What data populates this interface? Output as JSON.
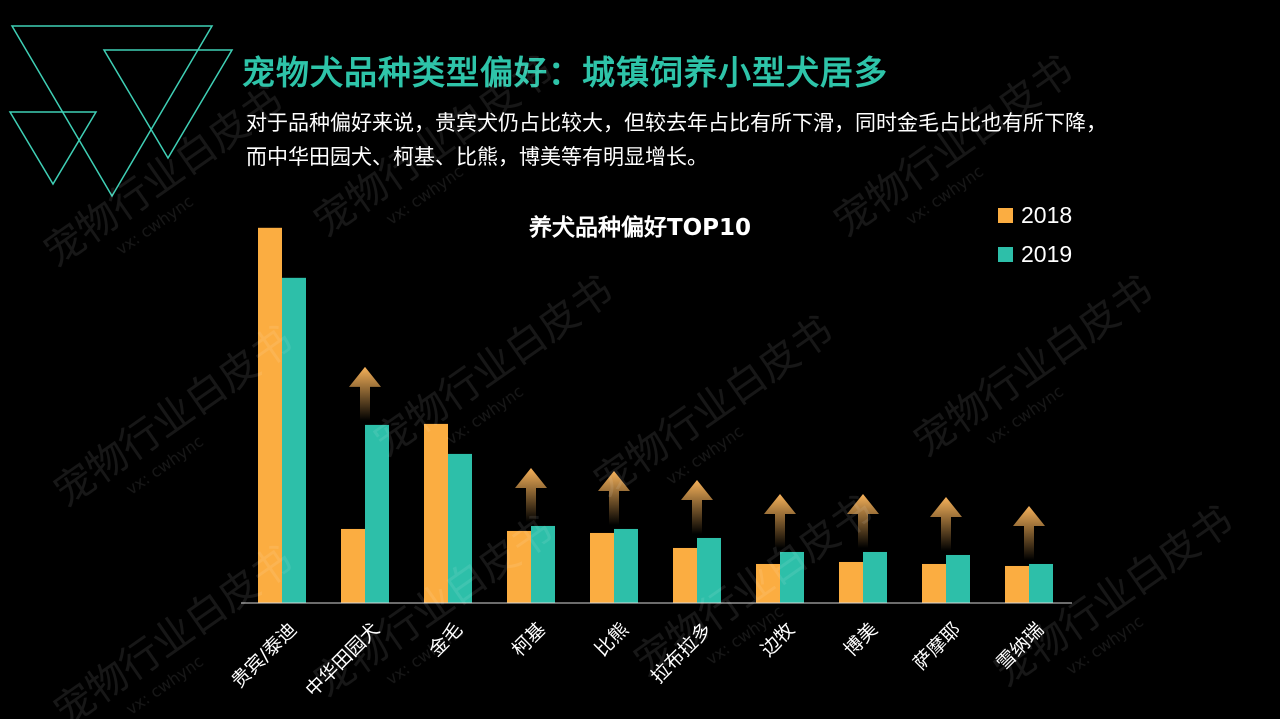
{
  "slide": {
    "title": "宠物犬品种类型偏好：城镇饲养小型犬居多",
    "subtitle": "对于品种偏好来说，贵宾犬仍占比较大，但较去年占比有所下滑，同时金毛占比也有所下降，而中华田园犬、柯基、比熊，博美等有明显增长。",
    "watermark": {
      "main": "宠物行业白皮书",
      "sub": "vx: cwhync"
    }
  },
  "colors": {
    "accent": "#2ec4a9",
    "series_2018": "#fbad41",
    "series_2019": "#2dbfa9",
    "deco_lines": "#3fcfb5"
  },
  "icons": {
    "increase": "up-arrow-icon"
  },
  "chart_data": {
    "type": "bar",
    "title": "养犬品种偏好TOP10",
    "categories": [
      "贵宾/泰迪",
      "中华田园犬",
      "金毛",
      "柯基",
      "比熊",
      "拉布拉多",
      "边牧",
      "博美",
      "萨摩耶",
      "雪纳瑞"
    ],
    "series": [
      {
        "name": "2018",
        "values": [
          37.5,
          7.4,
          17.9,
          7.2,
          7.0,
          5.5,
          3.9,
          4.1,
          3.9,
          3.7
        ]
      },
      {
        "name": "2019",
        "values": [
          32.5,
          17.8,
          14.9,
          7.7,
          7.4,
          6.5,
          5.1,
          5.1,
          4.8,
          3.9
        ]
      }
    ],
    "increase_markers": [
      false,
      true,
      false,
      true,
      true,
      true,
      true,
      true,
      true,
      true
    ],
    "ylim": [
      0,
      40
    ],
    "xlabel": "",
    "ylabel": "",
    "grid": false,
    "legend_position": "top-right"
  }
}
